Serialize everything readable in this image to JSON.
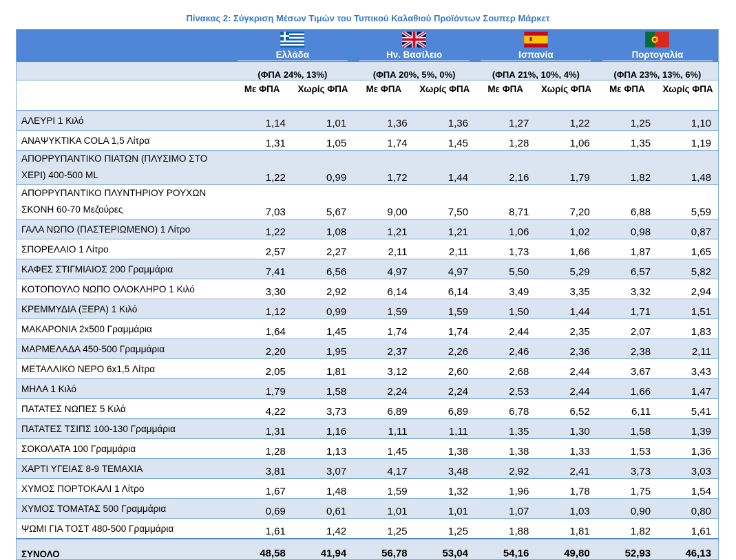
{
  "title": "Πίνακας 2: Σύγκριση Μέσων Τιμών του Τυπικού Καλαθιού Προϊόντων Σουπερ Μάρκετ",
  "countries": [
    {
      "name": "Ελλάδα",
      "vat": "(ΦΠΑ 24%, 13%)",
      "flag": "greece-flag-icon"
    },
    {
      "name": "Ην. Βασίλειο",
      "vat": "(ΦΠΑ 20%, 5%, 0%)",
      "flag": "uk-flag-icon"
    },
    {
      "name": "Ισπανία",
      "vat": "(ΦΠΑ 21%, 10%, 4%)",
      "flag": "spain-flag-icon"
    },
    {
      "name": "Πορτογαλία",
      "vat": "(ΦΠΑ 23%, 13%, 6%)",
      "flag": "portugal-flag-icon"
    }
  ],
  "sub_headers": {
    "with_vat": "Με ΦΠΑ",
    "without_vat": "Χωρίς ΦΠΑ"
  },
  "rows": [
    {
      "name": "ΑΛΕΥΡΙ 1 Κιλό",
      "values": [
        "1,14",
        "1,01",
        "1,36",
        "1,36",
        "1,27",
        "1,22",
        "1,25",
        "1,10"
      ]
    },
    {
      "name": "ΑΝΑΨΥΚΤΙΚΑ COLA 1,5 Λίτρα",
      "values": [
        "1,31",
        "1,05",
        "1,74",
        "1,45",
        "1,28",
        "1,06",
        "1,35",
        "1,19"
      ]
    },
    {
      "name": "ΑΠΟΡΡΥΠΑΝΤΙΚΟ ΠΙΑΤΩΝ (ΠΛΥΣΙΜΟ ΣΤΟ ΧΕΡΙ) 400-500 ML",
      "values": [
        "1,22",
        "0,99",
        "1,72",
        "1,44",
        "2,16",
        "1,79",
        "1,82",
        "1,48"
      ]
    },
    {
      "name": "ΑΠΟΡΡΥΠΑΝΤΙΚΟ ΠΛΥΝΤΗΡΙΟΥ ΡΟΥΧΩΝ ΣΚΟΝΗ 60-70 Μεζούρες",
      "values": [
        "7,03",
        "5,67",
        "9,00",
        "7,50",
        "8,71",
        "7,20",
        "6,88",
        "5,59"
      ]
    },
    {
      "name": "ΓΑΛΑ ΝΩΠΟ (ΠΑΣΤΕΡΙΩΜΕΝΟ) 1 Λίτρο",
      "values": [
        "1,22",
        "1,08",
        "1,21",
        "1,21",
        "1,06",
        "1,02",
        "0,98",
        "0,87"
      ]
    },
    {
      "name": "ΣΠΟΡΕΛΑΙΟ 1 Λίτρο",
      "values": [
        "2,57",
        "2,27",
        "2,11",
        "2,11",
        "1,73",
        "1,66",
        "1,87",
        "1,65"
      ]
    },
    {
      "name": "ΚΑΦΕΣ ΣΤΙΓΜΙΑΙΟΣ 200 Γραμμάρια",
      "values": [
        "7,41",
        "6,56",
        "4,97",
        "4,97",
        "5,50",
        "5,29",
        "6,57",
        "5,82"
      ]
    },
    {
      "name": "ΚΟΤΟΠΟΥΛΟ ΝΩΠΟ ΟΛΟΚΛΗΡΟ 1 Κιλό",
      "values": [
        "3,30",
        "2,92",
        "6,14",
        "6,14",
        "3,49",
        "3,35",
        "3,32",
        "2,94"
      ]
    },
    {
      "name": "ΚΡΕΜΜΥΔΙΑ (ΞΕΡΑ) 1 Κιλό",
      "values": [
        "1,12",
        "0,99",
        "1,59",
        "1,59",
        "1,50",
        "1,44",
        "1,71",
        "1,51"
      ]
    },
    {
      "name": "ΜΑΚΑΡΟΝΙΑ 2x500 Γραμμάρια",
      "values": [
        "1,64",
        "1,45",
        "1,74",
        "1,74",
        "2,44",
        "2,35",
        "2,07",
        "1,83"
      ]
    },
    {
      "name": "ΜΑΡΜΕΛΑΔΑ 450-500 Γραμμάρια",
      "values": [
        "2,20",
        "1,95",
        "2,37",
        "2,26",
        "2,46",
        "2,36",
        "2,38",
        "2,11"
      ]
    },
    {
      "name": "ΜΕΤΑΛΛΙΚΟ ΝΕΡΟ 6x1,5 Λίτρα",
      "values": [
        "2,05",
        "1,81",
        "3,12",
        "2,60",
        "2,68",
        "2,44",
        "3,67",
        "3,43"
      ]
    },
    {
      "name": "ΜΗΛΑ 1 Κιλό",
      "values": [
        "1,79",
        "1,58",
        "2,24",
        "2,24",
        "2,53",
        "2,44",
        "1,66",
        "1,47"
      ]
    },
    {
      "name": "ΠΑΤΑΤΕΣ ΝΩΠΕΣ 5 Κιλά",
      "values": [
        "4,22",
        "3,73",
        "6,89",
        "6,89",
        "6,78",
        "6,52",
        "6,11",
        "5,41"
      ]
    },
    {
      "name": "ΠΑΤΑΤΕΣ ΤΣΙΠΣ 100-130 Γραμμάρια",
      "values": [
        "1,31",
        "1,16",
        "1,11",
        "1,11",
        "1,35",
        "1,30",
        "1,58",
        "1,39"
      ]
    },
    {
      "name": "ΣΟΚΟΛΑΤΑ 100 Γραμμάρια",
      "values": [
        "1,28",
        "1,13",
        "1,45",
        "1,38",
        "1,38",
        "1,33",
        "1,53",
        "1,36"
      ]
    },
    {
      "name": "ΧΑΡΤΙ ΥΓΕΙΑΣ 8-9 ΤΕΜΑΧΙΑ",
      "values": [
        "3,81",
        "3,07",
        "4,17",
        "3,48",
        "2,92",
        "2,41",
        "3,73",
        "3,03"
      ]
    },
    {
      "name": "ΧΥΜΟΣ ΠΟΡΤΟΚΑΛΙ 1 Λίτρο",
      "values": [
        "1,67",
        "1,48",
        "1,59",
        "1,32",
        "1,96",
        "1,78",
        "1,75",
        "1,54"
      ]
    },
    {
      "name": "ΧΥΜΟΣ ΤΟΜΑΤΑΣ 500 Γραμμάρια",
      "values": [
        "0,69",
        "0,61",
        "1,01",
        "1,01",
        "1,07",
        "1,03",
        "0,90",
        "0,80"
      ]
    },
    {
      "name": "ΨΩΜΙ ΓΙΑ ΤΟΣΤ 480-500 Γραμμάρια",
      "values": [
        "1,61",
        "1,42",
        "1,25",
        "1,25",
        "1,88",
        "1,81",
        "1,82",
        "1,61"
      ]
    }
  ],
  "total": {
    "name": "ΣΥΝΟΛΟ",
    "values": [
      "48,58",
      "41,94",
      "56,78",
      "53,04",
      "54,16",
      "49,80",
      "52,93",
      "46,13"
    ]
  },
  "colors": {
    "header_blue": "#4f86d7",
    "band": "#dbe5f1",
    "title": "#3a78c2",
    "border": "#7eaadf"
  }
}
